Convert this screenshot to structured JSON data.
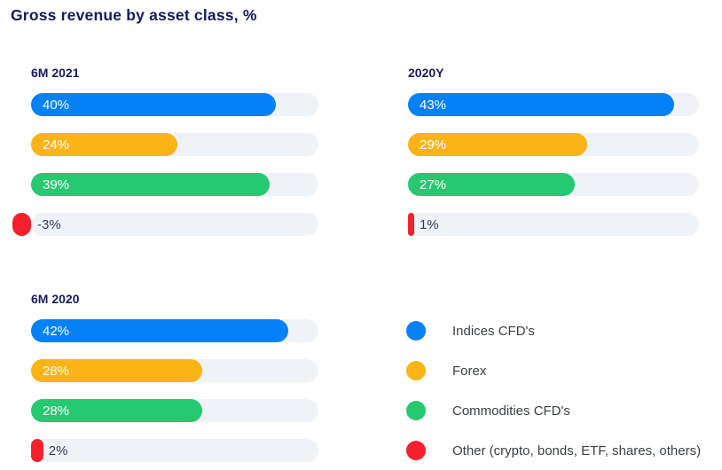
{
  "title": "Gross revenue by asset class, %",
  "colors": {
    "accent_blue": "#0481F7",
    "accent_yellow": "#FBB415",
    "accent_green": "#26C96F",
    "accent_red": "#F6212E",
    "track": "#EFF2F6",
    "heading_navy": "#161C5E",
    "value_dark": "#333A5E",
    "legend_text": "#3C4043"
  },
  "chart_data": {
    "type": "bar",
    "orientation": "horizontal",
    "title": "Gross revenue by asset class, %",
    "unit": "%",
    "scale_max": 47,
    "grid": false,
    "legend_position": "bottom-right",
    "categories": [
      "Indices CFD's",
      "Forex",
      "Commodities CFD's",
      "Other (crypto, bonds, ETF, shares, others)"
    ],
    "series_colors": [
      "#0481F7",
      "#FBB415",
      "#26C96F",
      "#F6212E"
    ],
    "panels": [
      {
        "label": "6M 2021",
        "values": [
          40,
          24,
          39,
          -3
        ],
        "value_labels": [
          "40%",
          "24%",
          "39%",
          "-3%"
        ]
      },
      {
        "label": "2020Y",
        "values": [
          43,
          29,
          27,
          1
        ],
        "value_labels": [
          "43%",
          "29%",
          "27%",
          "1%"
        ]
      },
      {
        "label": "6M 2020",
        "values": [
          42,
          28,
          28,
          2
        ],
        "value_labels": [
          "42%",
          "28%",
          "28%",
          "2%"
        ]
      }
    ]
  },
  "legend": {
    "items": [
      {
        "label": "Indices CFD's",
        "color": "#0481F7",
        "icon": "circle-swatch-icon"
      },
      {
        "label": "Forex",
        "color": "#FBB415",
        "icon": "circle-swatch-icon"
      },
      {
        "label": "Commodities CFD's",
        "color": "#26C96F",
        "icon": "circle-swatch-icon"
      },
      {
        "label": "Other (crypto, bonds, ETF, shares, others)",
        "color": "#F6212E",
        "icon": "circle-swatch-icon"
      }
    ]
  }
}
